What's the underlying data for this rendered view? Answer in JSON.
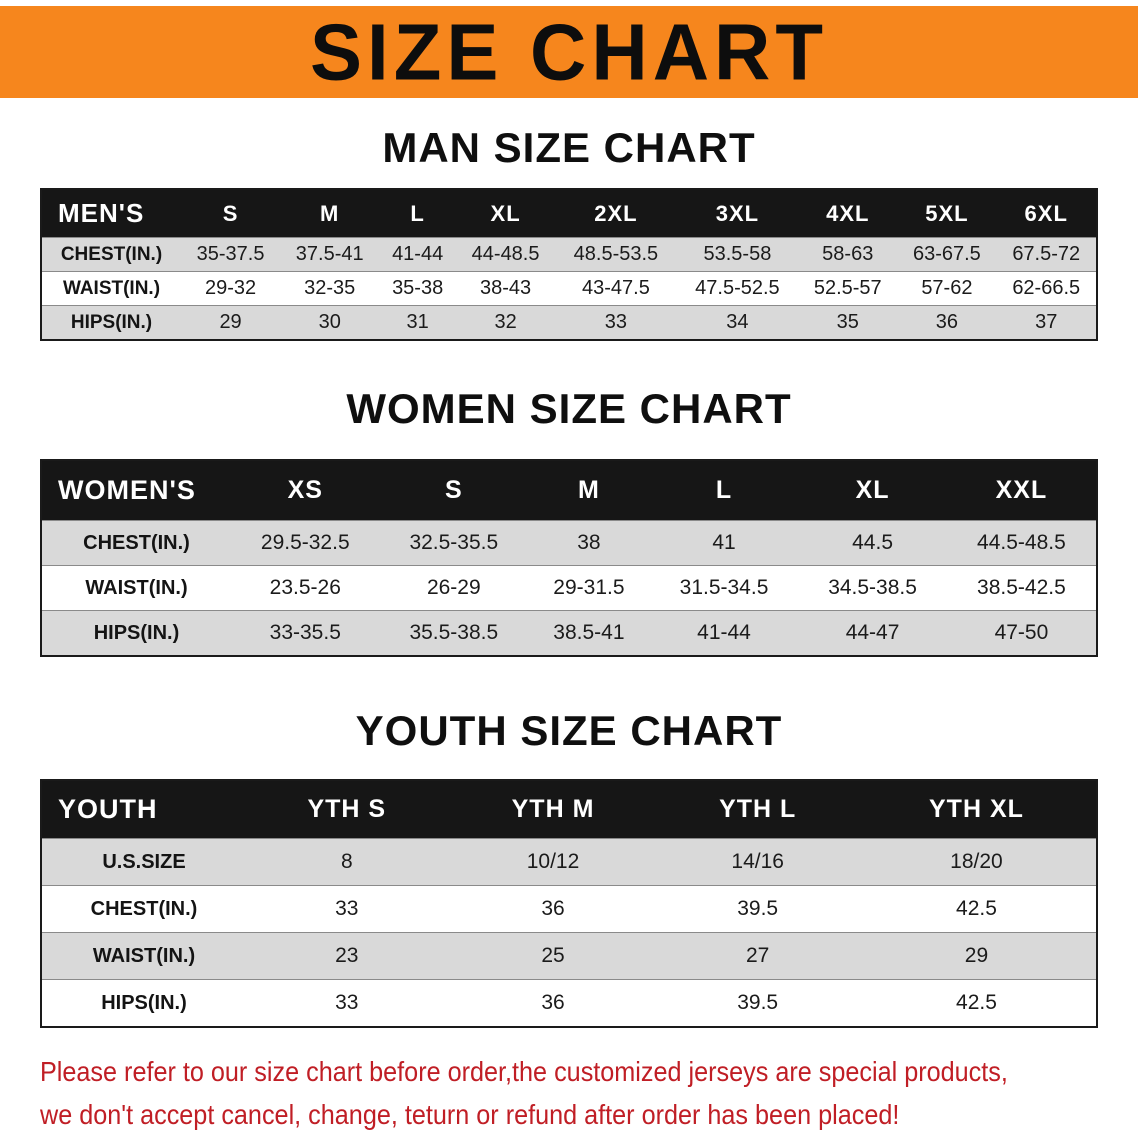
{
  "banner": {
    "title": "SIZE CHART",
    "bg_color": "#f6861d"
  },
  "sections": [
    {
      "heading": "MAN SIZE CHART",
      "table": {
        "header": [
          "MEN'S",
          "S",
          "M",
          "L",
          "XL",
          "2XL",
          "3XL",
          "4XL",
          "5XL",
          "6XL"
        ],
        "rows": [
          [
            "CHEST(IN.)",
            "35-37.5",
            "37.5-41",
            "41-44",
            "44-48.5",
            "48.5-53.5",
            "53.5-58",
            "58-63",
            "63-67.5",
            "67.5-72"
          ],
          [
            "WAIST(IN.)",
            "29-32",
            "32-35",
            "35-38",
            "38-43",
            "43-47.5",
            "47.5-52.5",
            "52.5-57",
            "57-62",
            "62-66.5"
          ],
          [
            "HIPS(IN.)",
            "29",
            "30",
            "31",
            "32",
            "33",
            "34",
            "35",
            "36",
            "37"
          ]
        ]
      }
    },
    {
      "heading": "WOMEN SIZE CHART",
      "table": {
        "header": [
          "WOMEN'S",
          "XS",
          "S",
          "M",
          "L",
          "XL",
          "XXL"
        ],
        "rows": [
          [
            "CHEST(IN.)",
            "29.5-32.5",
            "32.5-35.5",
            "38",
            "41",
            "44.5",
            "44.5-48.5"
          ],
          [
            "WAIST(IN.)",
            "23.5-26",
            "26-29",
            "29-31.5",
            "31.5-34.5",
            "34.5-38.5",
            "38.5-42.5"
          ],
          [
            "HIPS(IN.)",
            "33-35.5",
            "35.5-38.5",
            "38.5-41",
            "41-44",
            "44-47",
            "47-50"
          ]
        ]
      }
    },
    {
      "heading": "YOUTH SIZE CHART",
      "table": {
        "header": [
          "YOUTH",
          "YTH S",
          "YTH M",
          "YTH L",
          "YTH XL"
        ],
        "rows": [
          [
            "U.S.SIZE",
            "8",
            "10/12",
            "14/16",
            "18/20"
          ],
          [
            "CHEST(IN.)",
            "33",
            "36",
            "39.5",
            "42.5"
          ],
          [
            "WAIST(IN.)",
            "23",
            "25",
            "27",
            "29"
          ],
          [
            "HIPS(IN.)",
            "33",
            "36",
            "39.5",
            "42.5"
          ]
        ]
      }
    }
  ],
  "footer": {
    "line1": "Please refer to our size chart before order,the customized jerseys are special products,",
    "line2": "we don't accept cancel, change, teturn or refund after order has been placed!",
    "text_color": "#c01e25"
  }
}
